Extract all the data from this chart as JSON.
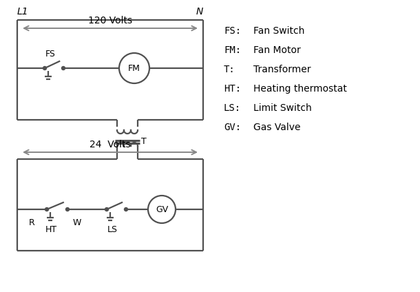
{
  "background_color": "#ffffff",
  "line_color": "#505050",
  "text_color": "#000000",
  "legend_items": [
    [
      "FS:",
      "Fan Switch"
    ],
    [
      "FM:",
      "Fan Motor"
    ],
    [
      "T:",
      "Transformer"
    ],
    [
      "HT:",
      "Heating thermostat"
    ],
    [
      "LS:",
      "Limit Switch"
    ],
    [
      "GV:",
      "Gas Valve"
    ]
  ],
  "L1_label": "L1",
  "N_label": "N",
  "v120_label": "120 Volts",
  "v24_label": "24  Volts",
  "T_label": "T",
  "R_label": "R",
  "W_label": "W",
  "HT_label": "HT",
  "LS_label": "LS",
  "FS_label": "FS",
  "FM_label": "FM",
  "GV_label": "GV"
}
